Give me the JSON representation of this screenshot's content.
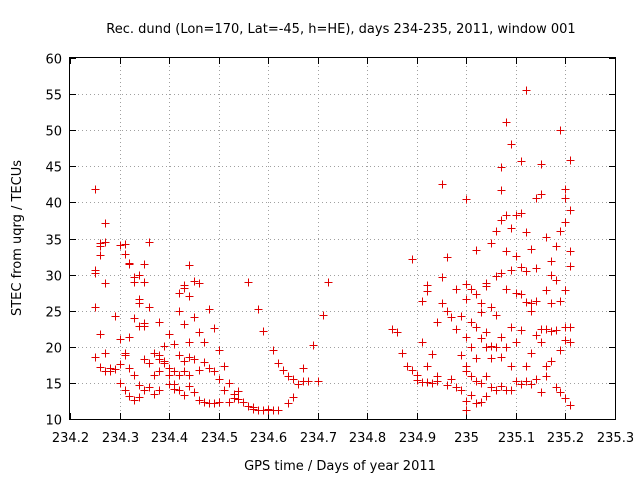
{
  "chart_data": {
    "type": "scatter",
    "title": "Rec. dund (Lon=170, Lat=-45, h=HE), days 234-235, 2011, window 001",
    "xlabel": "GPS time / Days of year 2011",
    "ylabel": "STEC from uqrg / TECUs",
    "xlim": [
      234.2,
      235.3
    ],
    "ylim": [
      10,
      60
    ],
    "xticks": [
      234.2,
      234.3,
      234.4,
      234.5,
      234.6,
      234.7,
      234.8,
      234.9,
      235.0,
      235.1,
      235.2,
      235.3
    ],
    "xtick_labels": [
      "234.2",
      "234.3",
      "234.4",
      "234.5",
      "234.6",
      "234.7",
      "234.8",
      "234.9",
      "235",
      "235.1",
      "235.2",
      "235.3"
    ],
    "yticks": [
      10,
      15,
      20,
      25,
      30,
      35,
      40,
      45,
      50,
      55,
      60
    ],
    "ytick_labels": [
      "10",
      "15",
      "20",
      "25",
      "30",
      "35",
      "40",
      "45",
      "50",
      "55",
      "60"
    ],
    "grid": true,
    "marker": "+",
    "marker_color": "#e00000",
    "points": [
      [
        234.25,
        41.9
      ],
      [
        234.25,
        30.6
      ],
      [
        234.25,
        30.2
      ],
      [
        234.25,
        25.5
      ],
      [
        234.25,
        18.6
      ],
      [
        234.26,
        34.4
      ],
      [
        234.26,
        33.9
      ],
      [
        234.26,
        32.7
      ],
      [
        234.26,
        21.8
      ],
      [
        234.26,
        17.2
      ],
      [
        234.27,
        34.5
      ],
      [
        234.27,
        37.2
      ],
      [
        234.27,
        28.9
      ],
      [
        234.27,
        19.2
      ],
      [
        234.27,
        16.7
      ],
      [
        234.28,
        17.1
      ],
      [
        234.28,
        16.6
      ],
      [
        234.29,
        24.2
      ],
      [
        234.29,
        16.9
      ],
      [
        234.3,
        34.1
      ],
      [
        234.3,
        21.1
      ],
      [
        234.3,
        17.6
      ],
      [
        234.3,
        15.0
      ],
      [
        234.31,
        34.2
      ],
      [
        234.31,
        32.8
      ],
      [
        234.31,
        19.1
      ],
      [
        234.31,
        18.9
      ],
      [
        234.31,
        14.0
      ],
      [
        234.32,
        31.6
      ],
      [
        234.32,
        31.5
      ],
      [
        234.32,
        21.3
      ],
      [
        234.32,
        17.1
      ],
      [
        234.32,
        13.2
      ],
      [
        234.33,
        29.6
      ],
      [
        234.33,
        29.0
      ],
      [
        234.33,
        24.0
      ],
      [
        234.33,
        16.1
      ],
      [
        234.33,
        12.7
      ],
      [
        234.34,
        29.9
      ],
      [
        234.34,
        26.6
      ],
      [
        234.34,
        26.1
      ],
      [
        234.34,
        22.9
      ],
      [
        234.34,
        14.7
      ],
      [
        234.34,
        13.0
      ],
      [
        234.35,
        31.4
      ],
      [
        234.35,
        29.0
      ],
      [
        234.35,
        23.3
      ],
      [
        234.35,
        22.9
      ],
      [
        234.35,
        18.3
      ],
      [
        234.35,
        14.0
      ],
      [
        234.36,
        34.5
      ],
      [
        234.36,
        25.5
      ],
      [
        234.36,
        17.8
      ],
      [
        234.36,
        14.4
      ],
      [
        234.37,
        19.1
      ],
      [
        234.37,
        16.1
      ],
      [
        234.37,
        13.5
      ],
      [
        234.38,
        23.5
      ],
      [
        234.38,
        18.8
      ],
      [
        234.38,
        18.3
      ],
      [
        234.38,
        16.6
      ],
      [
        234.38,
        14.0
      ],
      [
        234.39,
        20.1
      ],
      [
        234.39,
        18.1
      ],
      [
        234.39,
        17.8
      ],
      [
        234.4,
        21.8
      ],
      [
        234.4,
        17.1
      ],
      [
        234.4,
        16.1
      ],
      [
        234.4,
        14.8
      ],
      [
        234.41,
        20.4
      ],
      [
        234.41,
        16.6
      ],
      [
        234.41,
        14.8
      ],
      [
        234.41,
        14.2
      ],
      [
        234.42,
        27.5
      ],
      [
        234.42,
        24.9
      ],
      [
        234.42,
        18.8
      ],
      [
        234.42,
        16.1
      ],
      [
        234.42,
        14.0
      ],
      [
        234.43,
        28.6
      ],
      [
        234.43,
        28.2
      ],
      [
        234.43,
        23.1
      ],
      [
        234.43,
        18.1
      ],
      [
        234.43,
        16.6
      ],
      [
        234.43,
        13.3
      ],
      [
        234.44,
        31.3
      ],
      [
        234.44,
        27.0
      ],
      [
        234.44,
        20.6
      ],
      [
        234.44,
        18.6
      ],
      [
        234.44,
        16.1
      ],
      [
        234.44,
        14.6
      ],
      [
        234.45,
        29.1
      ],
      [
        234.45,
        24.1
      ],
      [
        234.45,
        18.3
      ],
      [
        234.45,
        13.7
      ],
      [
        234.46,
        28.9
      ],
      [
        234.46,
        22.0
      ],
      [
        234.46,
        16.8
      ],
      [
        234.46,
        12.6
      ],
      [
        234.47,
        20.6
      ],
      [
        234.47,
        17.9
      ],
      [
        234.47,
        12.4
      ],
      [
        234.48,
        25.3
      ],
      [
        234.48,
        17.1
      ],
      [
        234.48,
        12.2
      ],
      [
        234.49,
        22.6
      ],
      [
        234.49,
        16.6
      ],
      [
        234.49,
        12.2
      ],
      [
        234.5,
        19.6
      ],
      [
        234.5,
        15.6
      ],
      [
        234.5,
        12.3
      ],
      [
        234.51,
        17.4
      ],
      [
        234.51,
        14.0
      ],
      [
        234.52,
        15.0
      ],
      [
        234.52,
        12.4
      ],
      [
        234.53,
        13.5
      ],
      [
        234.53,
        12.9
      ],
      [
        234.54,
        13.9
      ],
      [
        234.54,
        12.8
      ],
      [
        234.55,
        12.3
      ],
      [
        234.56,
        11.8
      ],
      [
        234.56,
        29.0
      ],
      [
        234.57,
        11.6
      ],
      [
        234.57,
        11.4
      ],
      [
        234.58,
        25.2
      ],
      [
        234.58,
        11.3
      ],
      [
        234.59,
        22.2
      ],
      [
        234.59,
        11.2
      ],
      [
        234.6,
        11.2
      ],
      [
        234.6,
        11.4
      ],
      [
        234.61,
        19.6
      ],
      [
        234.61,
        11.2
      ],
      [
        234.62,
        17.8
      ],
      [
        234.62,
        11.3
      ],
      [
        234.63,
        16.8
      ],
      [
        234.64,
        12.2
      ],
      [
        234.64,
        15.9
      ],
      [
        234.65,
        13.1
      ],
      [
        234.65,
        15.6
      ],
      [
        234.66,
        14.8
      ],
      [
        234.67,
        17.1
      ],
      [
        234.67,
        15.3
      ],
      [
        234.68,
        15.3
      ],
      [
        234.69,
        20.2
      ],
      [
        234.7,
        15.2
      ],
      [
        234.71,
        24.4
      ],
      [
        234.72,
        29.0
      ],
      [
        234.85,
        22.4
      ],
      [
        234.86,
        22.0
      ],
      [
        234.87,
        19.1
      ],
      [
        234.88,
        17.3
      ],
      [
        234.89,
        16.8
      ],
      [
        234.89,
        32.2
      ],
      [
        234.9,
        16.1
      ],
      [
        234.9,
        15.4
      ],
      [
        234.91,
        26.3
      ],
      [
        234.91,
        20.6
      ],
      [
        234.91,
        15.1
      ],
      [
        234.92,
        28.6
      ],
      [
        234.92,
        27.7
      ],
      [
        234.92,
        17.3
      ],
      [
        234.92,
        15.1
      ],
      [
        234.93,
        15.0
      ],
      [
        234.93,
        19.0
      ],
      [
        234.94,
        23.5
      ],
      [
        234.94,
        15.9
      ],
      [
        234.94,
        15.3
      ],
      [
        234.95,
        29.6
      ],
      [
        234.95,
        26.1
      ],
      [
        234.95,
        42.6
      ],
      [
        234.96,
        32.5
      ],
      [
        234.96,
        24.9
      ],
      [
        234.96,
        14.7
      ],
      [
        234.97,
        24.1
      ],
      [
        234.97,
        15.6
      ],
      [
        234.98,
        28.0
      ],
      [
        234.98,
        22.5
      ],
      [
        234.98,
        14.5
      ],
      [
        234.99,
        24.3
      ],
      [
        234.99,
        18.8
      ],
      [
        234.99,
        14.0
      ],
      [
        235.0,
        40.5
      ],
      [
        235.0,
        28.7
      ],
      [
        235.0,
        26.6
      ],
      [
        235.0,
        21.3
      ],
      [
        235.0,
        17.4
      ],
      [
        235.0,
        16.7
      ],
      [
        235.0,
        12.5
      ],
      [
        235.0,
        11.2
      ],
      [
        235.01,
        28.0
      ],
      [
        235.01,
        23.5
      ],
      [
        235.01,
        20.0
      ],
      [
        235.01,
        16.0
      ],
      [
        235.01,
        13.3
      ],
      [
        235.02,
        33.4
      ],
      [
        235.02,
        27.3
      ],
      [
        235.02,
        22.8
      ],
      [
        235.02,
        18.5
      ],
      [
        235.02,
        15.3
      ],
      [
        235.02,
        12.2
      ],
      [
        235.03,
        26.0
      ],
      [
        235.03,
        24.8
      ],
      [
        235.03,
        21.2
      ],
      [
        235.03,
        15.0
      ],
      [
        235.03,
        12.4
      ],
      [
        235.04,
        28.9
      ],
      [
        235.04,
        28.4
      ],
      [
        235.04,
        22.0
      ],
      [
        235.04,
        20.0
      ],
      [
        235.04,
        16.0
      ],
      [
        235.04,
        13.2
      ],
      [
        235.05,
        34.4
      ],
      [
        235.05,
        25.5
      ],
      [
        235.05,
        20.1
      ],
      [
        235.05,
        18.5
      ],
      [
        235.05,
        14.5
      ],
      [
        235.06,
        36.0
      ],
      [
        235.06,
        29.8
      ],
      [
        235.06,
        24.4
      ],
      [
        235.06,
        20.0
      ],
      [
        235.06,
        14.0
      ],
      [
        235.07,
        41.7
      ],
      [
        235.07,
        44.9
      ],
      [
        235.07,
        37.6
      ],
      [
        235.07,
        30.2
      ],
      [
        235.07,
        21.3
      ],
      [
        235.07,
        18.6
      ],
      [
        235.07,
        14.6
      ],
      [
        235.08,
        38.2
      ],
      [
        235.08,
        33.3
      ],
      [
        235.08,
        28.0
      ],
      [
        235.08,
        20.0
      ],
      [
        235.08,
        14.0
      ],
      [
        235.08,
        51.2
      ],
      [
        235.09,
        48.1
      ],
      [
        235.09,
        36.5
      ],
      [
        235.09,
        30.6
      ],
      [
        235.09,
        22.7
      ],
      [
        235.09,
        17.4
      ],
      [
        235.09,
        14.0
      ],
      [
        235.1,
        38.3
      ],
      [
        235.1,
        32.6
      ],
      [
        235.1,
        27.4
      ],
      [
        235.1,
        20.6
      ],
      [
        235.1,
        15.3
      ],
      [
        235.11,
        45.8
      ],
      [
        235.11,
        38.6
      ],
      [
        235.11,
        31.0
      ],
      [
        235.11,
        27.3
      ],
      [
        235.11,
        22.3
      ],
      [
        235.11,
        14.8
      ],
      [
        235.12,
        55.6
      ],
      [
        235.12,
        35.9
      ],
      [
        235.12,
        30.5
      ],
      [
        235.12,
        26.2
      ],
      [
        235.12,
        17.4
      ],
      [
        235.12,
        15.2
      ],
      [
        235.13,
        33.6
      ],
      [
        235.13,
        26.0
      ],
      [
        235.13,
        24.9
      ],
      [
        235.13,
        19.1
      ],
      [
        235.13,
        14.8
      ],
      [
        235.14,
        40.6
      ],
      [
        235.14,
        30.9
      ],
      [
        235.14,
        26.3
      ],
      [
        235.14,
        21.6
      ],
      [
        235.14,
        15.5
      ],
      [
        235.15,
        45.3
      ],
      [
        235.15,
        41.1
      ],
      [
        235.15,
        22.4
      ],
      [
        235.15,
        20.7
      ],
      [
        235.15,
        13.7
      ],
      [
        235.16,
        35.2
      ],
      [
        235.16,
        27.9
      ],
      [
        235.16,
        22.4
      ],
      [
        235.16,
        17.4
      ],
      [
        235.16,
        16.0
      ],
      [
        235.17,
        31.9
      ],
      [
        235.17,
        29.9
      ],
      [
        235.17,
        26.1
      ],
      [
        235.17,
        22.2
      ],
      [
        235.17,
        18.0
      ],
      [
        235.18,
        34.0
      ],
      [
        235.18,
        29.2
      ],
      [
        235.18,
        22.3
      ],
      [
        235.18,
        14.5
      ],
      [
        235.19,
        50.0
      ],
      [
        235.19,
        36.0
      ],
      [
        235.19,
        26.4
      ],
      [
        235.19,
        19.6
      ],
      [
        235.19,
        13.8
      ],
      [
        235.2,
        41.8
      ],
      [
        235.2,
        40.6
      ],
      [
        235.2,
        37.3
      ],
      [
        235.2,
        27.8
      ],
      [
        235.2,
        22.7
      ],
      [
        235.2,
        21.0
      ],
      [
        235.2,
        12.9
      ],
      [
        235.21,
        45.9
      ],
      [
        235.21,
        39.0
      ],
      [
        235.21,
        33.3
      ],
      [
        235.21,
        31.2
      ],
      [
        235.21,
        22.7
      ],
      [
        235.21,
        20.6
      ],
      [
        235.21,
        12.0
      ]
    ]
  }
}
